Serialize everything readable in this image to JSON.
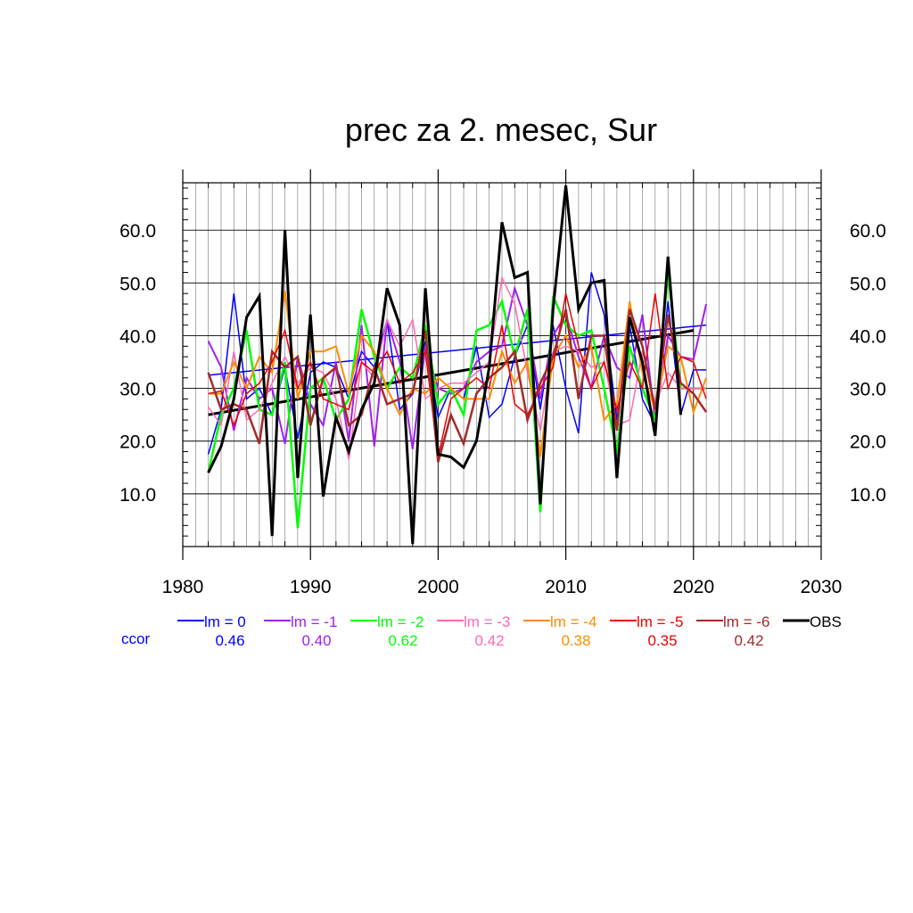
{
  "chart_data": {
    "type": "line",
    "title": "prec za 2. mesec, Sur",
    "xlabel": "",
    "ylabel": "",
    "xlim": [
      1980,
      2030
    ],
    "ylim": [
      0,
      69
    ],
    "x_ticks": [
      1980,
      1990,
      2000,
      2010,
      2020,
      2030
    ],
    "x_tick_labels": [
      "1980",
      "1990",
      "2000",
      "2010",
      "2020",
      "2030"
    ],
    "y_ticks": [
      10,
      20,
      30,
      40,
      50,
      60
    ],
    "y_tick_labels": [
      "10.0",
      "20.0",
      "30.0",
      "40.0",
      "50.0",
      "60.0"
    ],
    "grid": true,
    "x": [
      1982,
      1983,
      1984,
      1985,
      1986,
      1987,
      1988,
      1989,
      1990,
      1991,
      1992,
      1993,
      1994,
      1995,
      1996,
      1997,
      1998,
      1999,
      2000,
      2001,
      2002,
      2003,
      2004,
      2005,
      2006,
      2007,
      2008,
      2009,
      2010,
      2011,
      2012,
      2013,
      2014,
      2015,
      2016,
      2017,
      2018,
      2019,
      2020,
      2021
    ],
    "series": [
      {
        "name": "lm = 0",
        "color": "#0000ff",
        "width": 1.5,
        "values": [
          17.5,
          26,
          48,
          28,
          30,
          25,
          34,
          20.5,
          33,
          35,
          34,
          28,
          37,
          34,
          43,
          26,
          29,
          39,
          24.5,
          30,
          28,
          38,
          24.5,
          27,
          36,
          42,
          26,
          42,
          30,
          21.5,
          52,
          44,
          24,
          42,
          28,
          23,
          46.5,
          25,
          33.5,
          33.5
        ]
      },
      {
        "name": "lm = -1",
        "color": "#a020f0",
        "width": 2,
        "values": [
          39,
          34,
          22,
          32,
          28,
          30,
          19.5,
          36,
          27,
          23,
          35,
          20,
          42,
          19,
          43,
          35,
          18.5,
          38,
          30,
          29,
          30,
          35,
          37,
          38,
          49,
          42,
          28,
          40,
          44,
          36,
          30,
          40,
          34,
          32,
          44,
          24,
          40,
          36,
          35.5,
          46
        ]
      },
      {
        "name": "lm = -2",
        "color": "#00ff00",
        "width": 2.5,
        "values": [
          14,
          25,
          30,
          41,
          26,
          25,
          35,
          3.5,
          30,
          32,
          24,
          28,
          45,
          36,
          30,
          34,
          32,
          42,
          27,
          30,
          25,
          41,
          42,
          46.5,
          36,
          45,
          6.5,
          47.5,
          42,
          40,
          41,
          30,
          18,
          38,
          30,
          24,
          52,
          30,
          30,
          30
        ]
      },
      {
        "name": "lm = -3",
        "color": "#ff69b4",
        "width": 1.5,
        "values": [
          26.5,
          23,
          37,
          24,
          26,
          31,
          36,
          31,
          34,
          33,
          28,
          16.5,
          35,
          32,
          43,
          38,
          43,
          28,
          30,
          31,
          31,
          33,
          35,
          51,
          46,
          33,
          22,
          37,
          38,
          37,
          34,
          35,
          23,
          24,
          37,
          27,
          33,
          30,
          30,
          30
        ]
      },
      {
        "name": "lm = -4",
        "color": "#ff8c00",
        "width": 2,
        "values": [
          29,
          29,
          35,
          30,
          36,
          33,
          48.5,
          28,
          37,
          37,
          38,
          29,
          40,
          37,
          30,
          25,
          30,
          29,
          32,
          30,
          28,
          28,
          28,
          37,
          31,
          35,
          17,
          36,
          40,
          34,
          38,
          24,
          27,
          46.5,
          33,
          26,
          38,
          36,
          25.5,
          32
        ]
      },
      {
        "name": "lm = -5",
        "color": "#ee0000",
        "width": 1.5,
        "values": [
          29,
          29.5,
          23,
          29,
          31,
          35,
          41,
          30,
          35,
          28,
          27,
          26,
          35,
          33,
          37,
          31,
          33,
          37,
          17,
          28,
          30,
          32,
          30,
          42,
          27,
          25,
          30,
          34,
          48,
          38,
          30,
          35,
          26,
          35,
          30,
          48,
          30,
          36,
          35,
          28
        ]
      },
      {
        "name": "lm = -6",
        "color": "#a52a2a",
        "width": 2.5,
        "values": [
          33,
          26,
          27,
          26,
          19.5,
          37,
          34,
          36,
          23,
          32,
          34,
          23,
          25,
          34,
          27,
          28,
          29,
          41,
          16,
          25,
          19.5,
          29,
          32,
          34,
          37,
          24,
          31,
          36,
          45,
          28,
          40,
          40,
          22,
          45,
          38,
          26,
          44,
          31,
          29,
          25.5
        ]
      },
      {
        "name": "OBS",
        "color": "#000000",
        "width": 3,
        "values": [
          14,
          19,
          28,
          43.5,
          47.5,
          2,
          60,
          13,
          44,
          9.5,
          24.5,
          18,
          26,
          31,
          49,
          42,
          0.5,
          49,
          17.5,
          17,
          15,
          20,
          34,
          61.5,
          51,
          52,
          8,
          45,
          68.5,
          45,
          50,
          50.5,
          13,
          43.5,
          35,
          21,
          55,
          25,
          null,
          null
        ]
      }
    ],
    "trend_lines": [
      {
        "series": "lm = 0",
        "x": [
          1982,
          2021
        ],
        "y": [
          32.5,
          42
        ],
        "color": "#0000ff",
        "width": 1.5
      },
      {
        "series": "OBS",
        "x": [
          1982,
          2020
        ],
        "y": [
          25,
          41
        ],
        "color": "#000000",
        "width": 3
      }
    ],
    "legend": {
      "placement": "bottom",
      "row_label": "ccor",
      "row_label_color": "#0000ff",
      "entries": [
        {
          "label": "lm = 0",
          "color": "#0000ff",
          "ccor": "0.46"
        },
        {
          "label": "lm = -1",
          "color": "#a020f0",
          "ccor": "0.40"
        },
        {
          "label": "lm = -2",
          "color": "#00ff00",
          "ccor": "0.62"
        },
        {
          "label": "lm = -3",
          "color": "#ff69b4",
          "ccor": "0.42"
        },
        {
          "label": "lm = -4",
          "color": "#ff8c00",
          "ccor": "0.38"
        },
        {
          "label": "lm = -5",
          "color": "#ee0000",
          "ccor": "0.35"
        },
        {
          "label": "lm = -6",
          "color": "#a52a2a",
          "ccor": "0.42"
        },
        {
          "label": "OBS",
          "color": "#000000",
          "ccor": ""
        }
      ]
    }
  }
}
